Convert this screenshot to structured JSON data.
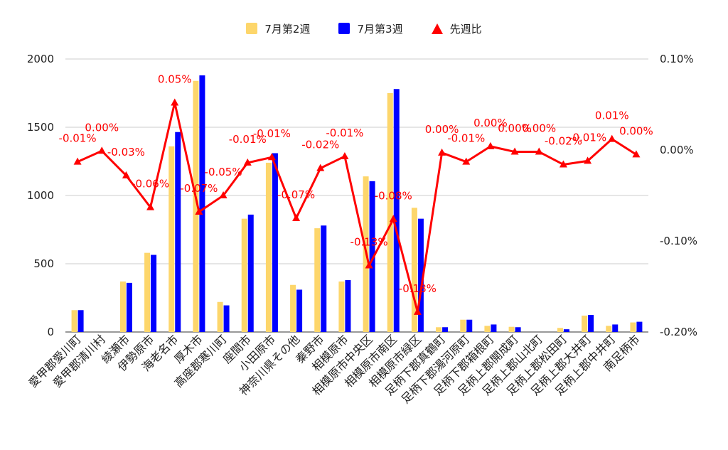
{
  "legend": {
    "week2": "7月第2週",
    "week3": "7月第3週",
    "ratio": "先週比"
  },
  "chart_data": {
    "type": "bar",
    "categories": [
      "愛甲郡愛川町",
      "愛甲郡清川村",
      "綾瀬市",
      "伊勢原市",
      "海老名市",
      "厚木市",
      "高座郡寒川町",
      "座間市",
      "小田原市",
      "神奈川県その他",
      "秦野市",
      "相模原市",
      "相模原市中央区",
      "相模原市南区",
      "相模原市緑区",
      "足柄下郡真鶴町",
      "足柄下郡湯河原町",
      "足柄下郡箱根町",
      "足柄上郡開成町",
      "足柄上郡山北町",
      "足柄上郡松田町",
      "足柄上郡大井町",
      "足柄上郡中井町",
      "南足柄市"
    ],
    "series": [
      {
        "name": "7月第2週",
        "type": "bar",
        "axis": "left",
        "color": "#fdd66b",
        "values": [
          160,
          0,
          370,
          580,
          1360,
          1840,
          220,
          830,
          1240,
          345,
          760,
          370,
          1140,
          1750,
          910,
          35,
          90,
          45,
          38,
          0,
          30,
          120,
          45,
          70
        ]
      },
      {
        "name": "7月第3週",
        "type": "bar",
        "axis": "left",
        "color": "#0000ff",
        "values": [
          160,
          0,
          360,
          565,
          1465,
          1880,
          195,
          860,
          1310,
          310,
          780,
          380,
          1105,
          1780,
          830,
          35,
          90,
          55,
          35,
          0,
          20,
          125,
          55,
          75
        ]
      },
      {
        "name": "先週比",
        "type": "line",
        "axis": "right",
        "color": "#ff0000",
        "values": [
          -0.013,
          -0.001,
          -0.028,
          -0.063,
          0.052,
          -0.068,
          -0.05,
          -0.014,
          -0.008,
          -0.075,
          -0.02,
          -0.007,
          -0.127,
          -0.076,
          -0.178,
          -0.003,
          -0.013,
          0.004,
          -0.002,
          -0.002,
          -0.016,
          -0.012,
          0.012,
          -0.005
        ],
        "labels": [
          "-0.01%",
          "0.00%",
          "-0.03%",
          "-0.06%",
          "0.05%",
          "-0.07%",
          "-0.05%",
          "-0.01%",
          "-0.01%",
          "-0.07%",
          "-0.02%",
          "-0.01%",
          "-0.13%",
          "-0.08%",
          "-0.18%",
          "0.00%",
          "-0.01%",
          "0.00%",
          "0.00%",
          "0.00%",
          "-0.02%",
          "-0.01%",
          "0.01%",
          "0.00%"
        ]
      }
    ],
    "ylim_left": [
      0,
      2000
    ],
    "yticks_left": [
      "0",
      "500",
      "1000",
      "1500",
      "2000"
    ],
    "ylim_right": [
      -0.2,
      0.1
    ],
    "yticks_right": [
      "-0.20%",
      "-0.10%",
      "0.00%",
      "0.10%"
    ],
    "legend_position": "top-center",
    "grid": true
  }
}
